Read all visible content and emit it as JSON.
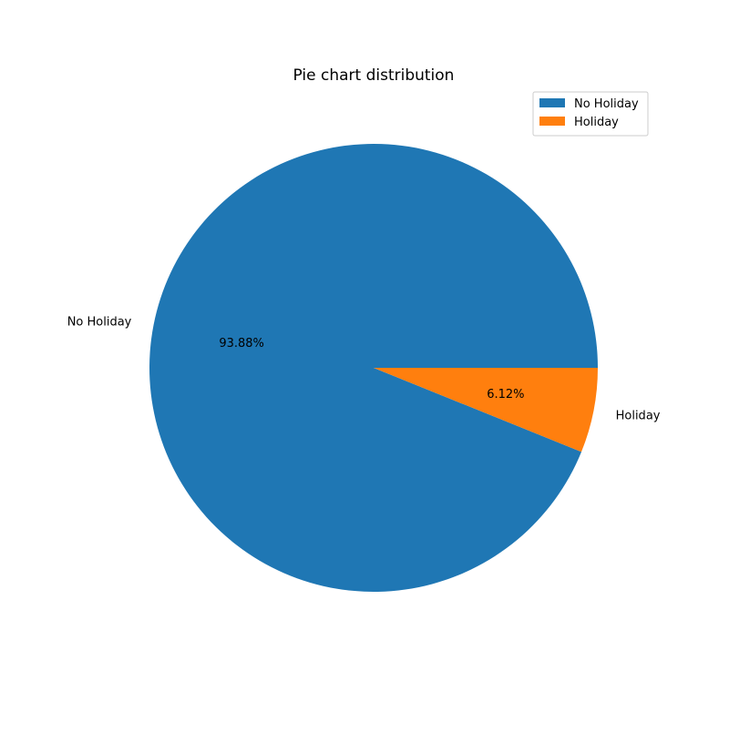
{
  "chart_data": {
    "type": "pie",
    "title": "Pie chart distribution",
    "categories": [
      "No Holiday",
      "Holiday"
    ],
    "values": [
      93.88,
      6.12
    ],
    "value_labels": [
      "93.88%",
      "6.12%"
    ],
    "colors": [
      "#1f77b4",
      "#ff7f0e"
    ],
    "start_angle_deg": 0,
    "direction": "counterclockwise",
    "legend": {
      "placement": "top-right",
      "entries": [
        "No Holiday",
        "Holiday"
      ]
    }
  }
}
